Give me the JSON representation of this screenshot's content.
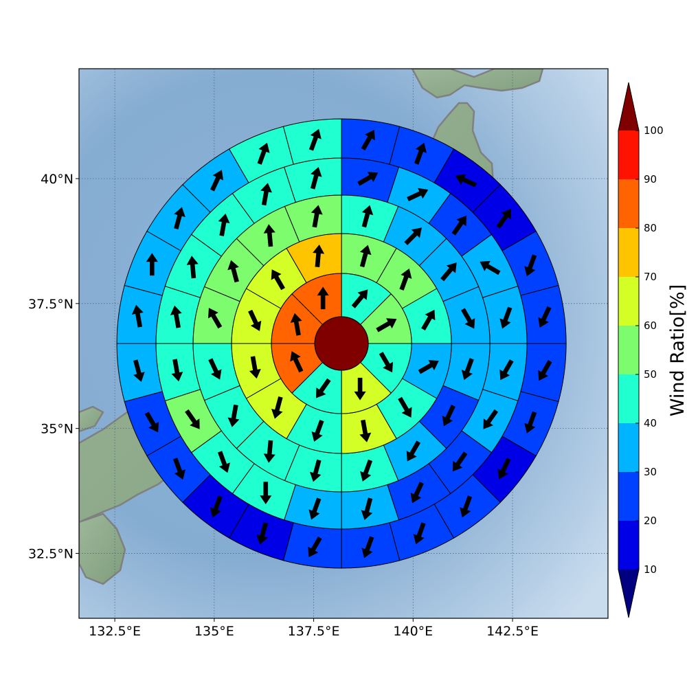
{
  "chart_data": {
    "type": "heatmap",
    "subtype": "polar-sector-map-with-wind-arrows",
    "title": "",
    "map": {
      "lon_range": [
        131.6,
        144.9
      ],
      "lat_range": [
        31.2,
        42.2
      ],
      "x_ticks": [
        {
          "value": 132.5,
          "label": "132.5°E"
        },
        {
          "value": 135,
          "label": "135°E"
        },
        {
          "value": 137.5,
          "label": "137.5°E"
        },
        {
          "value": 140,
          "label": "140°E"
        },
        {
          "value": 142.5,
          "label": "142.5°E"
        }
      ],
      "y_ticks": [
        {
          "value": 40,
          "label": "40°N"
        },
        {
          "value": 37.5,
          "label": "37.5°N"
        },
        {
          "value": 35,
          "label": "35°N"
        },
        {
          "value": 32.5,
          "label": "32.5°N"
        }
      ],
      "grid": true,
      "center": {
        "lon": 138.2,
        "lat": 36.7
      }
    },
    "polar_grid": {
      "ring_count": 6,
      "sectors_per_ring": [
        1,
        8,
        12,
        16,
        20,
        24
      ],
      "sector_start": "north, clockwise",
      "center_value": 100,
      "ring_values": [
        [
          100
        ],
        [
          40,
          50,
          40,
          60,
          40,
          80,
          80,
          80
        ],
        [
          50,
          50,
          40,
          30,
          40,
          60,
          40,
          60,
          60,
          60,
          60,
          70
        ],
        [
          40,
          30,
          30,
          30,
          30,
          20,
          30,
          40,
          40,
          40,
          40,
          40,
          50,
          50,
          50,
          50
        ],
        [
          20,
          30,
          20,
          30,
          30,
          30,
          30,
          20,
          20,
          30,
          30,
          40,
          40,
          50,
          40,
          40,
          40,
          40,
          40,
          40
        ],
        [
          20,
          20,
          10,
          10,
          20,
          20,
          20,
          20,
          10,
          20,
          20,
          20,
          20,
          10,
          10,
          20,
          20,
          30,
          30,
          30,
          30,
          30,
          40,
          40
        ]
      ],
      "arrow_directions_deg": [
        [],
        [
          40,
          60,
          150,
          180,
          215,
          335,
          350,
          0
        ],
        [
          15,
          20,
          30,
          60,
          150,
          170,
          200,
          195,
          170,
          155,
          330,
          5
        ],
        [
          15,
          45,
          40,
          150,
          200,
          205,
          210,
          200,
          195,
          185,
          190,
          155,
          330,
          345,
          355,
          10
        ],
        [
          60,
          65,
          35,
          300,
          200,
          210,
          215,
          215,
          205,
          195,
          200,
          180,
          160,
          145,
          170,
          350,
          355,
          10,
          10,
          15
        ],
        [
          30,
          20,
          295,
          35,
          200,
          205,
          210,
          200,
          205,
          200,
          200,
          200,
          210,
          195,
          200,
          160,
          150,
          165,
          350,
          0,
          15,
          25,
          20,
          20
        ]
      ]
    },
    "colorbar": {
      "label": "Wind Ratio[%]",
      "ticks": [
        10,
        20,
        30,
        40,
        50,
        60,
        70,
        80,
        90,
        100
      ],
      "bins": [
        {
          "min": 10,
          "max": 20,
          "color": "#0000e6"
        },
        {
          "min": 20,
          "max": 30,
          "color": "#0040ff"
        },
        {
          "min": 30,
          "max": 40,
          "color": "#00b4ff"
        },
        {
          "min": 40,
          "max": 50,
          "color": "#20ffd0"
        },
        {
          "min": 50,
          "max": 60,
          "color": "#7dfc6e"
        },
        {
          "min": 60,
          "max": 70,
          "color": "#d4ff26"
        },
        {
          "min": 70,
          "max": 80,
          "color": "#ffc400"
        },
        {
          "min": 80,
          "max": 90,
          "color": "#ff6400"
        },
        {
          "min": 90,
          "max": 100,
          "color": "#ff1200"
        }
      ],
      "under_color": "#000080",
      "over_color": "#800000",
      "extend": "both"
    }
  }
}
